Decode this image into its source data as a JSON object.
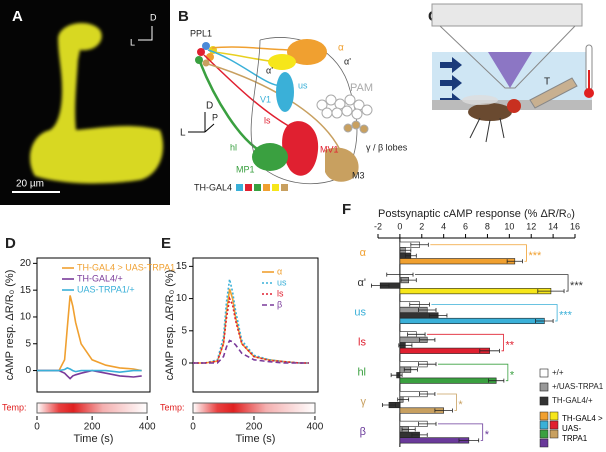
{
  "panels": {
    "A": {
      "label": "A",
      "compass_d": "D",
      "compass_l": "L",
      "scale": "20 µm"
    },
    "B": {
      "label": "B",
      "ppl1": "PPL1",
      "alpha": "α",
      "alpha_prime_right": "α'",
      "alpha_prime_left": "α'",
      "v1": "V1",
      "us": "us",
      "pam": "PAM",
      "ls": "ls",
      "mv1": "MV1",
      "hl": "hl",
      "mp1": "MP1",
      "m3": "M3",
      "gamma_beta": "γ / β lobes",
      "compass_d": "D",
      "compass_p": "P",
      "compass_l": "L",
      "driver": "TH-GAL4"
    },
    "C": {
      "label": "C",
      "probe": "T"
    }
  },
  "chart_data": [
    {
      "type": "line",
      "panel_label": "D",
      "temp_label": "Temp:",
      "xlabel": "Time (s)",
      "ylabel": "cAMP resp. ΔR/R₀ (%)",
      "x": [
        0,
        40,
        80,
        100,
        110,
        120,
        130,
        140,
        160,
        200,
        250,
        300,
        350,
        380
      ],
      "xlim": [
        0,
        410
      ],
      "xticks": [
        0,
        200,
        400
      ],
      "ylim": [
        -4,
        21
      ],
      "yticks": [
        0,
        5,
        10,
        15,
        20
      ],
      "series": [
        {
          "name": "TH-GAL4 > UAS-TRPA1",
          "color": "#f0a030",
          "dash": "solid",
          "values": [
            0,
            0,
            0,
            2,
            8,
            14,
            12,
            9,
            5,
            2,
            1,
            0.5,
            0.3,
            0
          ]
        },
        {
          "name": "TH-GAL4/+",
          "color": "#7a3a9a",
          "dash": "solid",
          "values": [
            0,
            0,
            0,
            -0.5,
            -1,
            -1.5,
            -1,
            -0.8,
            -0.5,
            0,
            -0.5,
            -1,
            -1.2,
            -1
          ]
        },
        {
          "name": "UAS-TRPA1/+",
          "color": "#3ab0d8",
          "dash": "solid",
          "values": [
            0,
            0,
            0,
            0.2,
            0.5,
            0.3,
            0,
            -0.2,
            0,
            0,
            0,
            -0.3,
            0,
            0
          ]
        }
      ]
    },
    {
      "type": "line",
      "panel_label": "E",
      "temp_label": "Temp:",
      "xlabel": "Time (s)",
      "ylabel": "cAMP resp. ΔR/R₀ (%)",
      "x": [
        0,
        40,
        80,
        100,
        110,
        120,
        130,
        140,
        160,
        200,
        250,
        300,
        350,
        380
      ],
      "xlim": [
        0,
        410
      ],
      "xticks": [
        0,
        200,
        400
      ],
      "ylim": [
        -4.5,
        16.3
      ],
      "yticks": [
        0,
        5,
        10,
        15
      ],
      "series": [
        {
          "name": "α",
          "color": "#f0a030",
          "dash": "solid",
          "values": [
            0,
            0,
            0.3,
            3,
            8,
            11.5,
            10,
            7,
            3,
            1,
            0.5,
            0.2,
            0,
            0
          ]
        },
        {
          "name": "us",
          "color": "#3ab0d8",
          "dash": "dotted",
          "values": [
            0,
            0,
            0.5,
            4,
            9.5,
            13,
            11,
            8,
            3.5,
            1.2,
            0.5,
            0.2,
            0,
            0
          ]
        },
        {
          "name": "ls",
          "color": "#e02030",
          "dash": "dotted",
          "values": [
            0,
            0,
            0.3,
            3,
            7,
            10,
            9,
            6.5,
            3,
            1,
            0.4,
            0.2,
            0,
            0
          ]
        },
        {
          "name": "β",
          "color": "#7a3a9a",
          "dash": "dashed",
          "values": [
            0,
            0,
            0,
            1,
            2.5,
            3.5,
            3.3,
            2.8,
            1.5,
            0.5,
            0.2,
            0,
            0,
            0
          ]
        }
      ]
    },
    {
      "type": "hbar",
      "panel_label": "F",
      "xlabel": "Postsynaptic cAMP response (% ΔR/R₀)",
      "categories": [
        "α",
        "α'",
        "us",
        "ls",
        "hl",
        "γ",
        "β"
      ],
      "category_colors": [
        "#f0a030",
        "#333333",
        "#3ab0d8",
        "#e02030",
        "#3aa040",
        "#c8a060",
        "#6a3a9a"
      ],
      "xlim": [
        -2,
        16
      ],
      "xticks": [
        -2,
        0,
        2,
        4,
        6,
        8,
        10,
        12,
        14,
        16
      ],
      "significance": [
        "***",
        "***",
        "***",
        "**",
        "*",
        "*",
        "*"
      ],
      "series": [
        {
          "name": "+/+",
          "color": "#ffffff",
          "values": [
            1.8,
            0,
            1.8,
            1.5,
            2.5,
            2.5,
            2.5
          ],
          "errors": [
            0.8,
            1.2,
            0.9,
            0.8,
            0.8,
            0.7,
            0.8
          ]
        },
        {
          "name": "+/UAS-TRPA1",
          "color": "#999999",
          "values": [
            0.5,
            0.8,
            2.5,
            2.5,
            1,
            0.3,
            0.8
          ],
          "errors": [
            0.5,
            0.7,
            0.8,
            0.7,
            0.6,
            0.5,
            0.6
          ]
        },
        {
          "name": "TH-GAL4/+",
          "color": "#333333",
          "values": [
            1,
            -1.8,
            3.5,
            0.5,
            -0.3,
            -1,
            1.8
          ],
          "errors": [
            0.5,
            0.8,
            0.8,
            0.6,
            0.5,
            0.6,
            0.7
          ]
        },
        {
          "name": "TH-GAL4 > UAS-TRPA1",
          "colors": [
            "#f0a030",
            "#f6e61a",
            "#3ab0d8",
            "#e02030",
            "#3aa040",
            "#c8a060",
            "#6a3a9a"
          ],
          "values": [
            10.5,
            13.8,
            13.2,
            8.2,
            8.8,
            4,
            6.3
          ],
          "errors": [
            0.7,
            1.2,
            0.8,
            0.9,
            0.7,
            0.8,
            0.9
          ]
        }
      ]
    }
  ]
}
